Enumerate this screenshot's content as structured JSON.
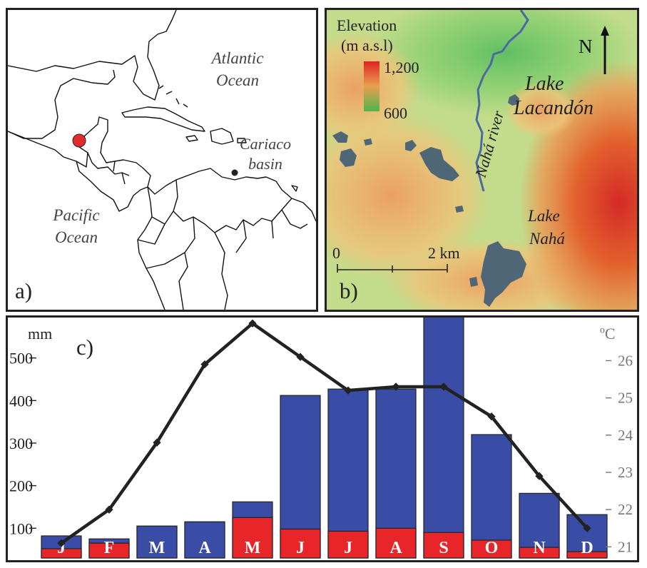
{
  "panel_a": {
    "letter": "a)",
    "atlantic_line1": "Atlantic",
    "atlantic_line2": "Ocean",
    "pacific_line1": "Pacific",
    "pacific_line2": "Ocean",
    "cariaco_line1": "Cariaco",
    "cariaco_line2": "basin"
  },
  "panel_b": {
    "letter": "b)",
    "legend_title_line1": "Elevation",
    "legend_title_line2": "(m a.s.l)",
    "legend_max": "1,200",
    "legend_min": "600",
    "north": "N",
    "scale_start": "0",
    "scale_end": "2 km",
    "river": "Nahá river",
    "lake_lacandon_line1": "Lake",
    "lake_lacandon_line2": "Lacandón",
    "lake_naha_line1": "Lake",
    "lake_naha_line2": "Nahá"
  },
  "colors": {
    "rain_wet": "#3a4da6",
    "rain_dry": "#e8262a",
    "temperature_line": "#222222",
    "lake": "#4f6677",
    "river": "#4a6aa0"
  },
  "chart_data": {
    "type": "bar",
    "panel_letter": "c)",
    "ylabel": "mm",
    "ylabel_right": "ºC",
    "categories": [
      "J",
      "F",
      "M",
      "A",
      "M",
      "J",
      "J",
      "A",
      "S",
      "O",
      "N",
      "D"
    ],
    "series": [
      {
        "values": [
          82,
          75,
          105,
          115,
          162,
          412,
          427,
          427,
          598,
          320,
          182,
          132
        ]
      },
      {
        "values": [
          52,
          65,
          105,
          115,
          125,
          98,
          93,
          100,
          90,
          72,
          55,
          45
        ]
      },
      {
        "values": [
          21.1,
          22.0,
          23.8,
          25.9,
          27.0,
          26.1,
          25.2,
          25.3,
          25.3,
          24.5,
          22.9,
          21.5
        ]
      }
    ],
    "dry_segment_on_top": [
      false,
      false,
      true,
      true,
      false,
      false,
      false,
      false,
      false,
      false,
      false,
      false
    ],
    "yticks": [
      100,
      200,
      300,
      400,
      500
    ],
    "yticks_right": [
      21,
      22,
      23,
      24,
      25,
      26
    ],
    "ylim": [
      30,
      590
    ],
    "ylim_right": [
      20.7,
      27.1
    ],
    "grid": false
  }
}
